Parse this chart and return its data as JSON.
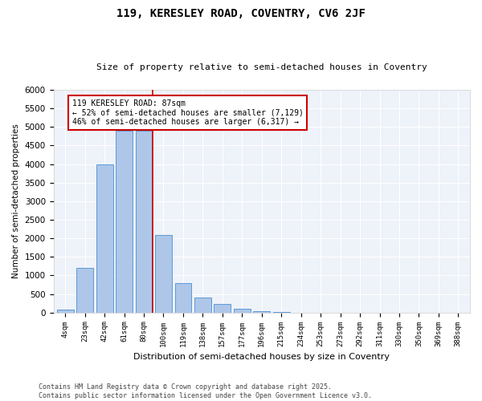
{
  "title1": "119, KERESLEY ROAD, COVENTRY, CV6 2JF",
  "title2": "Size of property relative to semi-detached houses in Coventry",
  "xlabel": "Distribution of semi-detached houses by size in Coventry",
  "ylabel": "Number of semi-detached properties",
  "bins": [
    "4sqm",
    "23sqm",
    "42sqm",
    "61sqm",
    "80sqm",
    "100sqm",
    "119sqm",
    "138sqm",
    "157sqm",
    "177sqm",
    "196sqm",
    "215sqm",
    "234sqm",
    "253sqm",
    "273sqm",
    "292sqm",
    "311sqm",
    "330sqm",
    "350sqm",
    "369sqm",
    "388sqm"
  ],
  "values": [
    75,
    1200,
    4000,
    4900,
    4900,
    2100,
    800,
    400,
    230,
    110,
    40,
    10,
    0,
    0,
    0,
    0,
    0,
    0,
    0,
    0,
    0
  ],
  "bar_color": "#aec6e8",
  "bar_edge_color": "#5b9bd5",
  "vline_color": "#cc0000",
  "annotation_title": "119 KERESLEY ROAD: 87sqm",
  "annotation_line1": "← 52% of semi-detached houses are smaller (7,129)",
  "annotation_line2": "46% of semi-detached houses are larger (6,317) →",
  "ylim": [
    0,
    6000
  ],
  "yticks": [
    0,
    500,
    1000,
    1500,
    2000,
    2500,
    3000,
    3500,
    4000,
    4500,
    5000,
    5500,
    6000
  ],
  "background_color": "#eef2f9",
  "grid_color": "#ffffff",
  "footer1": "Contains HM Land Registry data © Crown copyright and database right 2025.",
  "footer2": "Contains public sector information licensed under the Open Government Licence v3.0."
}
